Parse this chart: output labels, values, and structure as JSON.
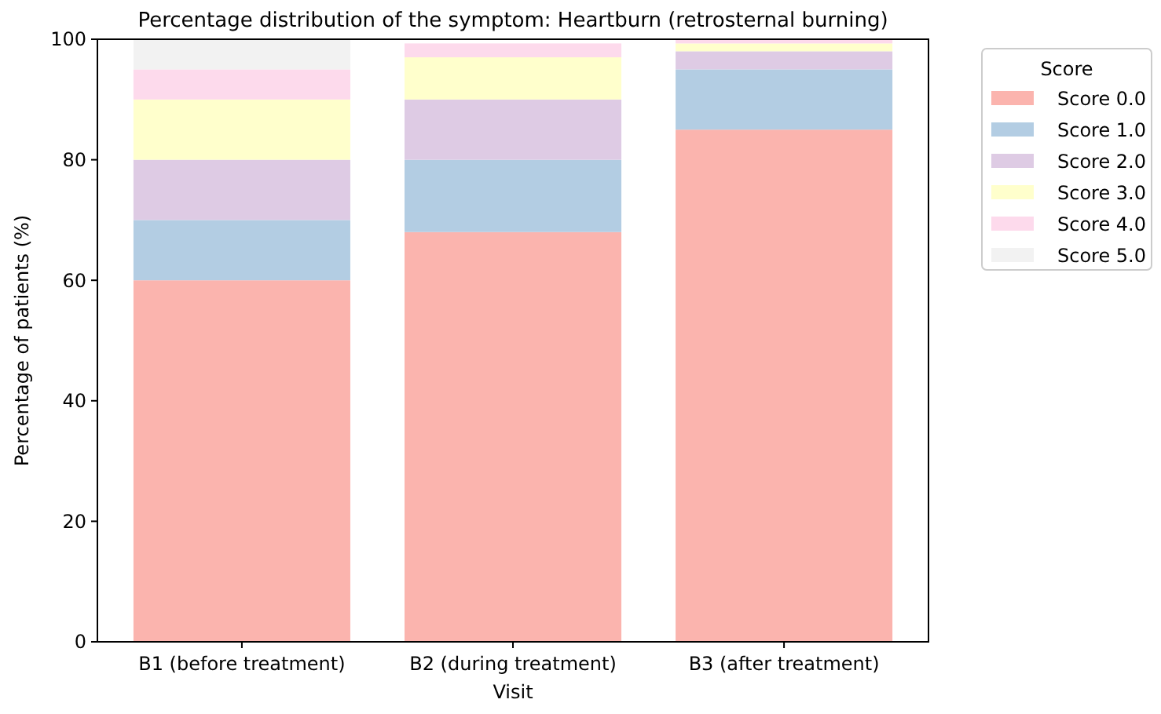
{
  "chart_data": {
    "type": "bar",
    "stacked": true,
    "title": "Percentage distribution of the symptom: Heartburn (retrosternal burning)",
    "xlabel": "Visit",
    "ylabel": "Percentage of patients (%)",
    "legend_title": "Score",
    "legend": "right",
    "categories": [
      "B1 (before treatment)",
      "B2 (during treatment)",
      "B3 (after treatment)"
    ],
    "ylim": [
      0,
      100
    ],
    "yticks": [
      0,
      20,
      40,
      60,
      80,
      100
    ],
    "series": [
      {
        "name": "Score 0.0",
        "color": "#fbb4ae",
        "values": [
          60,
          68,
          85
        ]
      },
      {
        "name": "Score 1.0",
        "color": "#b3cde3",
        "values": [
          10,
          12,
          10
        ]
      },
      {
        "name": "Score 2.0",
        "color": "#decbe4",
        "values": [
          10,
          10,
          3
        ]
      },
      {
        "name": "Score 3.0",
        "color": "#ffffcc",
        "values": [
          10,
          7,
          1.3
        ]
      },
      {
        "name": "Score 4.0",
        "color": "#fddaec",
        "values": [
          5,
          2.3,
          0.7
        ]
      },
      {
        "name": "Score 5.0",
        "color": "#f2f2f2",
        "values": [
          5,
          0,
          0
        ]
      }
    ]
  }
}
